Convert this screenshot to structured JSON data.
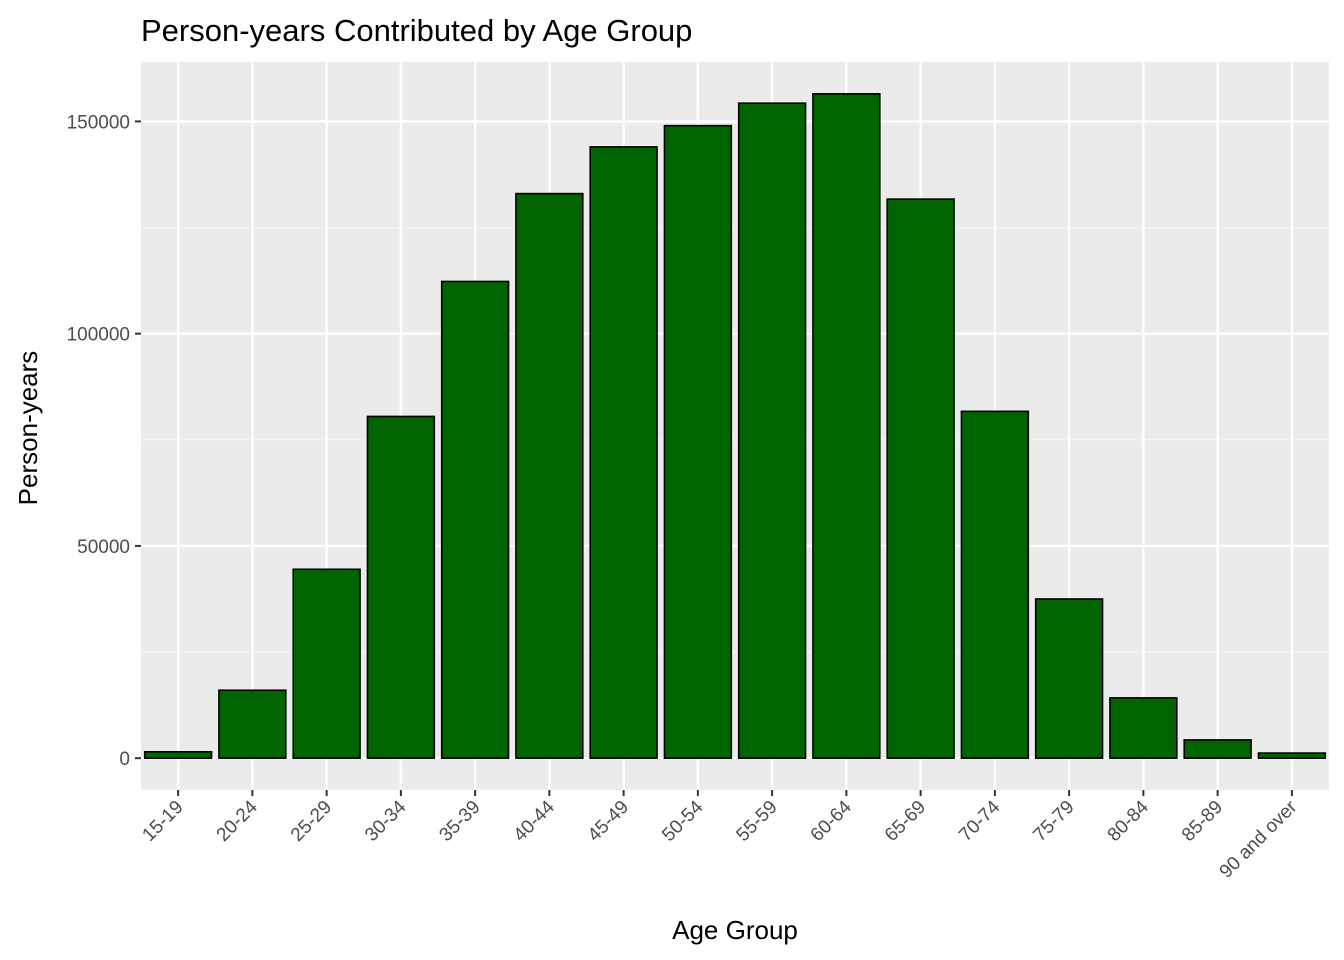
{
  "chart_data": {
    "type": "bar",
    "title": "Person-years Contributed by Age Group",
    "xlabel": "Age Group",
    "ylabel": "Person-years",
    "categories": [
      "15-19",
      "20-24",
      "25-29",
      "30-34",
      "35-39",
      "40-44",
      "45-49",
      "50-54",
      "55-59",
      "60-64",
      "65-69",
      "70-74",
      "75-79",
      "80-84",
      "85-89",
      "90 and over"
    ],
    "values": [
      1500,
      16000,
      44500,
      80500,
      112300,
      133000,
      144000,
      149000,
      154300,
      156500,
      131700,
      81700,
      37500,
      14200,
      4300,
      1200
    ],
    "ylim": [
      -7500,
      164000
    ],
    "yticks": [
      0,
      50000,
      100000,
      150000
    ],
    "ytick_labels": [
      "0",
      "50000",
      "100000",
      "150000"
    ],
    "grid": true,
    "colors": {
      "bar_fill": "#006400",
      "bar_stroke": "#000000",
      "panel_background": "#ebebeb",
      "grid_major": "#ffffff",
      "grid_minor": "#f5f5f5"
    }
  }
}
